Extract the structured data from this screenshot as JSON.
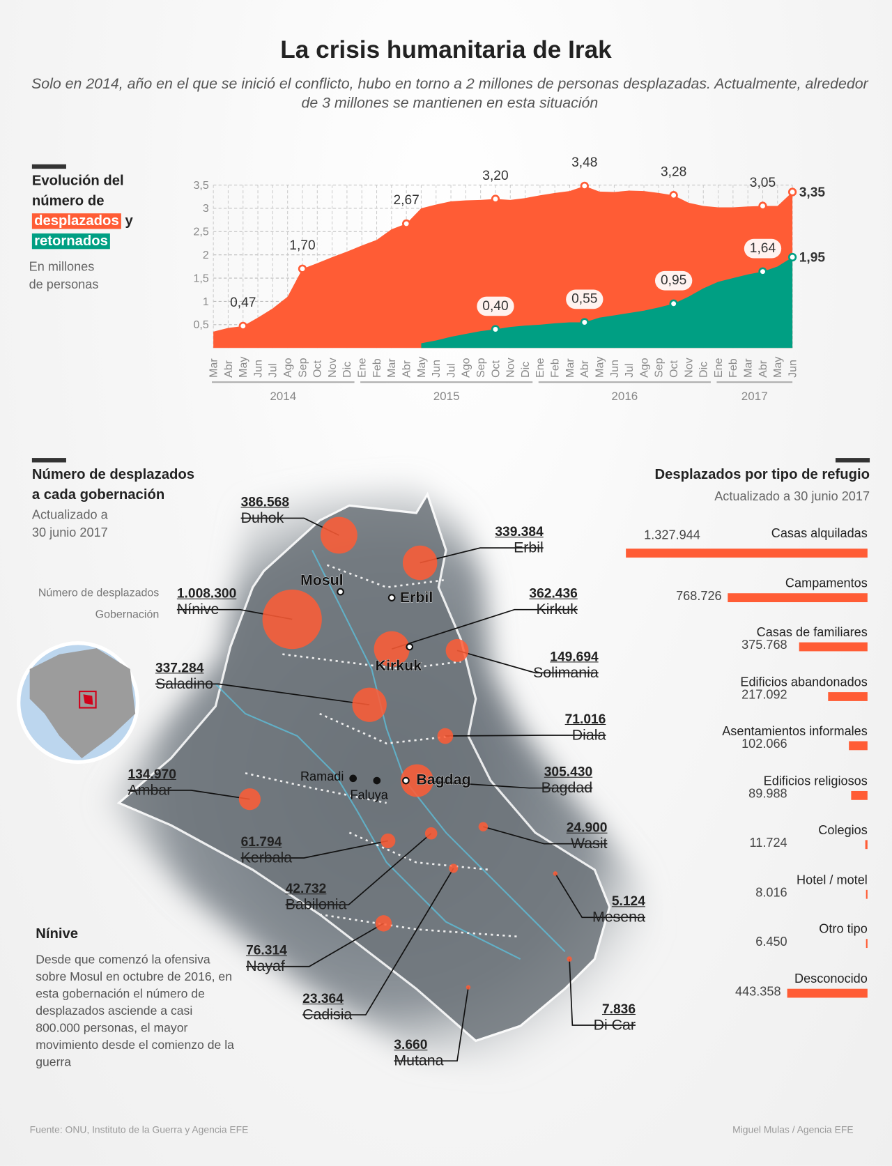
{
  "title": "La crisis humanitaria de Irak",
  "subtitle": "Solo en 2014, año en el que se inició el conflicto, hubo en torno a 2 millones de personas desplazadas. Actualmente, alrededor de 3 millones se mantienen en esta situación",
  "colors": {
    "displaced": "#ff5c35",
    "returned": "#009f83",
    "text": "#222222"
  },
  "evolution": {
    "title_line1": "Evolución del",
    "title_line2": "número de",
    "displaced_label": "desplazados",
    "connector": "y",
    "returned_label": "retornados",
    "unit_line1": "En millones",
    "unit_line2": "de personas"
  },
  "chart_data": [
    {
      "type": "area",
      "ylim": [
        0,
        3.5
      ],
      "grid": true,
      "yticks": [
        "0,5",
        "1",
        "1,5",
        "2",
        "2,5",
        "3",
        "3,5"
      ],
      "x": [
        "Mar",
        "Abr",
        "May",
        "Jun",
        "Jul",
        "Ago",
        "Sep",
        "Oct",
        "Nov",
        "Dic",
        "Ene",
        "Feb",
        "Mar",
        "Abr",
        "May",
        "Jun",
        "Jul",
        "Ago",
        "Sep",
        "Oct",
        "Nov",
        "Dic",
        "Ene",
        "Feb",
        "Mar",
        "Abr",
        "May",
        "Jun",
        "Jul",
        "Ago",
        "Sep",
        "Oct",
        "Nov",
        "Dic",
        "Ene",
        "Feb",
        "Mar",
        "Abr",
        "May",
        "Jun"
      ],
      "years": [
        {
          "label": "2014",
          "months": 10
        },
        {
          "label": "2015",
          "months": 12
        },
        {
          "label": "2016",
          "months": 12
        },
        {
          "label": "2017",
          "months": 6
        }
      ],
      "series": [
        {
          "name": "desplazados",
          "values": [
            0.35,
            0.43,
            0.47,
            0.65,
            0.85,
            1.1,
            1.7,
            1.82,
            1.95,
            2.07,
            2.2,
            2.32,
            2.55,
            2.67,
            3.0,
            3.08,
            3.15,
            3.17,
            3.18,
            3.2,
            3.18,
            3.22,
            3.28,
            3.33,
            3.37,
            3.48,
            3.36,
            3.35,
            3.38,
            3.37,
            3.33,
            3.28,
            3.12,
            3.05,
            3.02,
            3.02,
            3.04,
            3.05,
            3.05,
            3.35
          ],
          "labels": [
            {
              "index": 2,
              "text": "0,47"
            },
            {
              "index": 6,
              "text": "1,70"
            },
            {
              "index": 13,
              "text": "2,67"
            },
            {
              "index": 19,
              "text": "3,20"
            },
            {
              "index": 25,
              "text": "3,48"
            },
            {
              "index": 31,
              "text": "3,28"
            },
            {
              "index": 37,
              "text": "3,05"
            },
            {
              "index": 39,
              "text": "3,35"
            }
          ]
        },
        {
          "name": "retornados",
          "values": [
            null,
            null,
            null,
            null,
            null,
            null,
            null,
            null,
            null,
            null,
            null,
            null,
            null,
            null,
            0.1,
            0.16,
            0.24,
            0.3,
            0.36,
            0.4,
            0.45,
            0.48,
            0.5,
            0.53,
            0.55,
            0.55,
            0.65,
            0.7,
            0.75,
            0.8,
            0.87,
            0.95,
            1.1,
            1.28,
            1.42,
            1.5,
            1.58,
            1.64,
            1.75,
            1.95
          ],
          "labels": [
            {
              "index": 19,
              "text": "0,40"
            },
            {
              "index": 25,
              "text": "0,55"
            },
            {
              "index": 31,
              "text": "0,95"
            },
            {
              "index": 37,
              "text": "1,64"
            },
            {
              "index": 39,
              "text": "1,95"
            }
          ]
        }
      ]
    },
    {
      "type": "bar",
      "title": "Desplazados por tipo de refugio",
      "subtitle": "Actualizado a 30 junio 2017",
      "categories": [
        "Casas alquiladas",
        "Campamentos",
        "Casas de familiares",
        "Edificios abandonados",
        "Asentamientos informales",
        "Edificios religiosos",
        "Colegios",
        "Hotel / motel",
        "Otro tipo",
        "Desconocido"
      ],
      "values": [
        1327944,
        768726,
        375768,
        217092,
        102066,
        89988,
        11724,
        8016,
        6450,
        443358
      ],
      "value_labels": [
        "1.327.944",
        "768.726",
        "375.768",
        "217.092",
        "102.066",
        "89.988",
        "11.724",
        "8.016",
        "6.450",
        "443.358"
      ]
    }
  ],
  "map": {
    "title_line1": "Número de desplazados",
    "title_line2": "a cada gobernación",
    "updated_line1": "Actualizado a",
    "updated_line2": "30 junio 2017",
    "legend_value": "Número de desplazados",
    "legend_name": "Gobernación",
    "governorates": [
      {
        "name": "Duhok",
        "value": 386568,
        "label": "386.568"
      },
      {
        "name": "Erbil",
        "value": 339384,
        "label": "339.384"
      },
      {
        "name": "Nínive",
        "value": 1008300,
        "label": "1.008.300"
      },
      {
        "name": "Kirkuk",
        "value": 362436,
        "label": "362.436"
      },
      {
        "name": "Solimania",
        "value": 149694,
        "label": "149.694"
      },
      {
        "name": "Saladino",
        "value": 337284,
        "label": "337.284"
      },
      {
        "name": "Diala",
        "value": 71016,
        "label": "71.016"
      },
      {
        "name": "Ambar",
        "value": 134970,
        "label": "134.970"
      },
      {
        "name": "Bagdad",
        "value": 305430,
        "label": "305.430"
      },
      {
        "name": "Wasit",
        "value": 24900,
        "label": "24.900"
      },
      {
        "name": "Kerbala",
        "value": 61794,
        "label": "61.794"
      },
      {
        "name": "Babilonia",
        "value": 42732,
        "label": "42.732"
      },
      {
        "name": "Mesena",
        "value": 5124,
        "label": "5.124"
      },
      {
        "name": "Nayaf",
        "value": 76314,
        "label": "76.314"
      },
      {
        "name": "Cadisia",
        "value": 23364,
        "label": "23.364"
      },
      {
        "name": "Mutana",
        "value": 3660,
        "label": "3.660"
      },
      {
        "name": "Di Car",
        "value": 7836,
        "label": "7.836"
      }
    ],
    "cities": [
      "Mosul",
      "Erbil",
      "Kirkuk",
      "Ramadi",
      "Faluya",
      "Bagdag"
    ]
  },
  "note": {
    "title": "Nínive",
    "text": "Desde que comenzó la ofensiva sobre Mosul en octubre de 2016, en esta gobernación el número de desplazados asciende a casi 800.000 personas, el mayor movimiento desde el comienzo de la guerra"
  },
  "footer": {
    "source": "Fuente: ONU, Instituto de la Guerra y Agencia EFE",
    "credit": "Miguel Mulas / Agencia EFE"
  }
}
